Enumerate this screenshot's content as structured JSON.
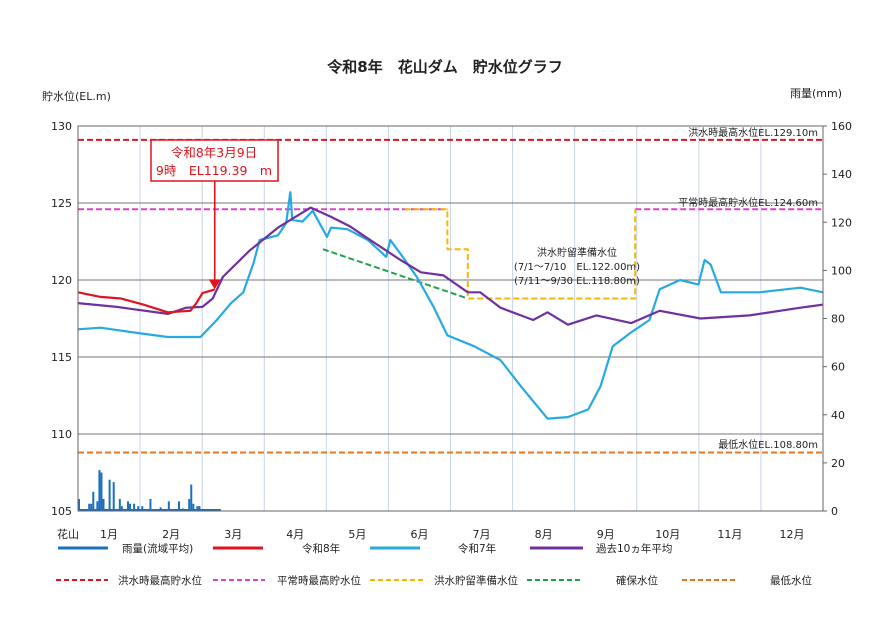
{
  "chart_data": {
    "type": "line",
    "title": "令和8年　花山ダム　貯水位グラフ",
    "ylabel_left": "貯水位(EL.m)",
    "ylabel_right": "雨量(mm)",
    "x_prefix_label": "花山",
    "x_tick_labels": [
      "1月",
      "2月",
      "3月",
      "4月",
      "5月",
      "6月",
      "7月",
      "8月",
      "9月",
      "10月",
      "11月",
      "12月"
    ],
    "ylim_left": [
      105,
      130
    ],
    "yticks_left": [
      105,
      110,
      115,
      120,
      125,
      130
    ],
    "ylim_right": [
      0,
      160
    ],
    "yticks_right": [
      0,
      20,
      40,
      60,
      80,
      100,
      120,
      140,
      160
    ],
    "x_unit": "day of year",
    "xlim": [
      0,
      365
    ],
    "grid": true,
    "legend_placement": "bottom",
    "colors": {
      "rain": "#1a6fbf",
      "r8": "#e0141e",
      "r7": "#27a9e1",
      "avg10": "#7030a0",
      "flood_max": "#e0141e",
      "normal_max": "#e040c8",
      "flood_prep": "#f5b800",
      "secure": "#22a24a",
      "min": "#e87722"
    },
    "series": [
      {
        "key": "r8",
        "name": "令和8年",
        "points": [
          [
            0,
            119.2
          ],
          [
            11,
            118.9
          ],
          [
            21,
            118.8
          ],
          [
            32,
            118.4
          ],
          [
            44,
            117.9
          ],
          [
            55,
            118.0
          ],
          [
            58,
            118.5
          ],
          [
            61,
            119.15
          ],
          [
            67,
            119.39
          ]
        ]
      },
      {
        "key": "r7",
        "name": "令和7年",
        "points": [
          [
            0,
            116.8
          ],
          [
            11,
            116.9
          ],
          [
            27,
            116.6
          ],
          [
            44,
            116.3
          ],
          [
            60,
            116.3
          ],
          [
            68,
            117.4
          ],
          [
            75,
            118.5
          ],
          [
            81,
            119.2
          ],
          [
            86,
            121.1
          ],
          [
            89,
            122.6
          ],
          [
            98,
            122.9
          ],
          [
            102,
            123.7
          ],
          [
            104,
            125.7
          ],
          [
            105,
            123.9
          ],
          [
            110,
            123.8
          ],
          [
            115,
            124.5
          ],
          [
            122,
            122.8
          ],
          [
            124,
            123.4
          ],
          [
            132,
            123.3
          ],
          [
            142,
            122.6
          ],
          [
            151,
            121.5
          ],
          [
            153,
            122.6
          ],
          [
            158,
            121.7
          ],
          [
            166,
            120.2
          ],
          [
            174,
            118.3
          ],
          [
            181,
            116.4
          ],
          [
            194,
            115.7
          ],
          [
            207,
            114.8
          ],
          [
            217,
            113.1
          ],
          [
            230,
            111.0
          ],
          [
            240,
            111.1
          ],
          [
            250,
            111.6
          ],
          [
            256,
            113.1
          ],
          [
            262,
            115.7
          ],
          [
            271,
            116.6
          ],
          [
            280,
            117.4
          ],
          [
            285,
            119.4
          ],
          [
            295,
            120.0
          ],
          [
            304,
            119.7
          ],
          [
            307,
            121.3
          ],
          [
            310,
            121.0
          ],
          [
            315,
            119.2
          ],
          [
            334,
            119.2
          ],
          [
            354,
            119.5
          ],
          [
            365,
            119.2
          ]
        ]
      },
      {
        "key": "avg10",
        "name": "過去10ヵ年平均",
        "points": [
          [
            0,
            118.5
          ],
          [
            19,
            118.25
          ],
          [
            44,
            117.8
          ],
          [
            53,
            118.2
          ],
          [
            61,
            118.25
          ],
          [
            66,
            118.8
          ],
          [
            71,
            120.2
          ],
          [
            84,
            121.9
          ],
          [
            98,
            123.4
          ],
          [
            114,
            124.7
          ],
          [
            124,
            124.1
          ],
          [
            133,
            123.5
          ],
          [
            142,
            122.7
          ],
          [
            158,
            121.3
          ],
          [
            168,
            120.5
          ],
          [
            179,
            120.3
          ],
          [
            191,
            119.2
          ],
          [
            197,
            119.2
          ],
          [
            207,
            118.2
          ],
          [
            223,
            117.4
          ],
          [
            230,
            117.9
          ],
          [
            240,
            117.1
          ],
          [
            254,
            117.7
          ],
          [
            271,
            117.2
          ],
          [
            285,
            118.0
          ],
          [
            305,
            117.5
          ],
          [
            329,
            117.7
          ],
          [
            354,
            118.2
          ],
          [
            365,
            118.4
          ]
        ]
      },
      {
        "key": "flood_max",
        "name": "洪水時最高貯水位",
        "dashed": true,
        "points": [
          [
            0,
            129.1
          ],
          [
            365,
            129.1
          ]
        ]
      },
      {
        "key": "normal_max",
        "name": "平常時最高貯水位",
        "dashed": true,
        "segments": [
          [
            [
              0,
              124.6
            ],
            [
              181,
              124.6
            ]
          ],
          [
            [
              273,
              124.6
            ],
            [
              365,
              124.6
            ]
          ]
        ]
      },
      {
        "key": "flood_prep",
        "name": "洪水貯留準備水位",
        "dashed": true,
        "points": [
          [
            160,
            124.6
          ],
          [
            181,
            124.6
          ],
          [
            181,
            122.0
          ],
          [
            191,
            122.0
          ],
          [
            191,
            118.8
          ],
          [
            273,
            118.8
          ],
          [
            273,
            124.6
          ]
        ]
      },
      {
        "key": "secure",
        "name": "確保水位",
        "dashed": true,
        "points": [
          [
            120,
            122.0
          ],
          [
            191,
            118.8
          ]
        ]
      },
      {
        "key": "min",
        "name": "最低水位",
        "dashed": true,
        "points": [
          [
            0,
            108.8
          ],
          [
            365,
            108.8
          ]
        ]
      }
    ],
    "rain": {
      "name": "雨量(流域平均)",
      "days": [
        0,
        5,
        6,
        7,
        9,
        10,
        11,
        12,
        15,
        17,
        20,
        21,
        24,
        25,
        27,
        29,
        31,
        35,
        40,
        44,
        49,
        51,
        54,
        55,
        56,
        58,
        59
      ],
      "values": [
        5,
        3,
        3,
        8,
        4,
        17,
        16,
        5,
        13,
        12,
        5,
        2,
        4,
        3,
        3,
        2,
        2,
        5,
        1.5,
        4,
        4,
        1,
        5,
        11,
        3,
        2,
        2
      ]
    },
    "reference_labels": {
      "flood_max": "洪水時最高水位EL.129.10m",
      "normal_max": "平常時最高貯水位EL.124.60m",
      "min": "最低水位EL.108.80m",
      "flood_prep_title": "洪水貯留準備水位",
      "flood_prep_line1": "(7/1～7/10　EL.122.00m)",
      "flood_prep_line2": "(7/11～9/30 EL.118.80m)"
    },
    "annotation": {
      "line1": "令和8年3月9日",
      "line2": "9時　EL119.39　m",
      "day": 67,
      "value": 119.39
    }
  }
}
